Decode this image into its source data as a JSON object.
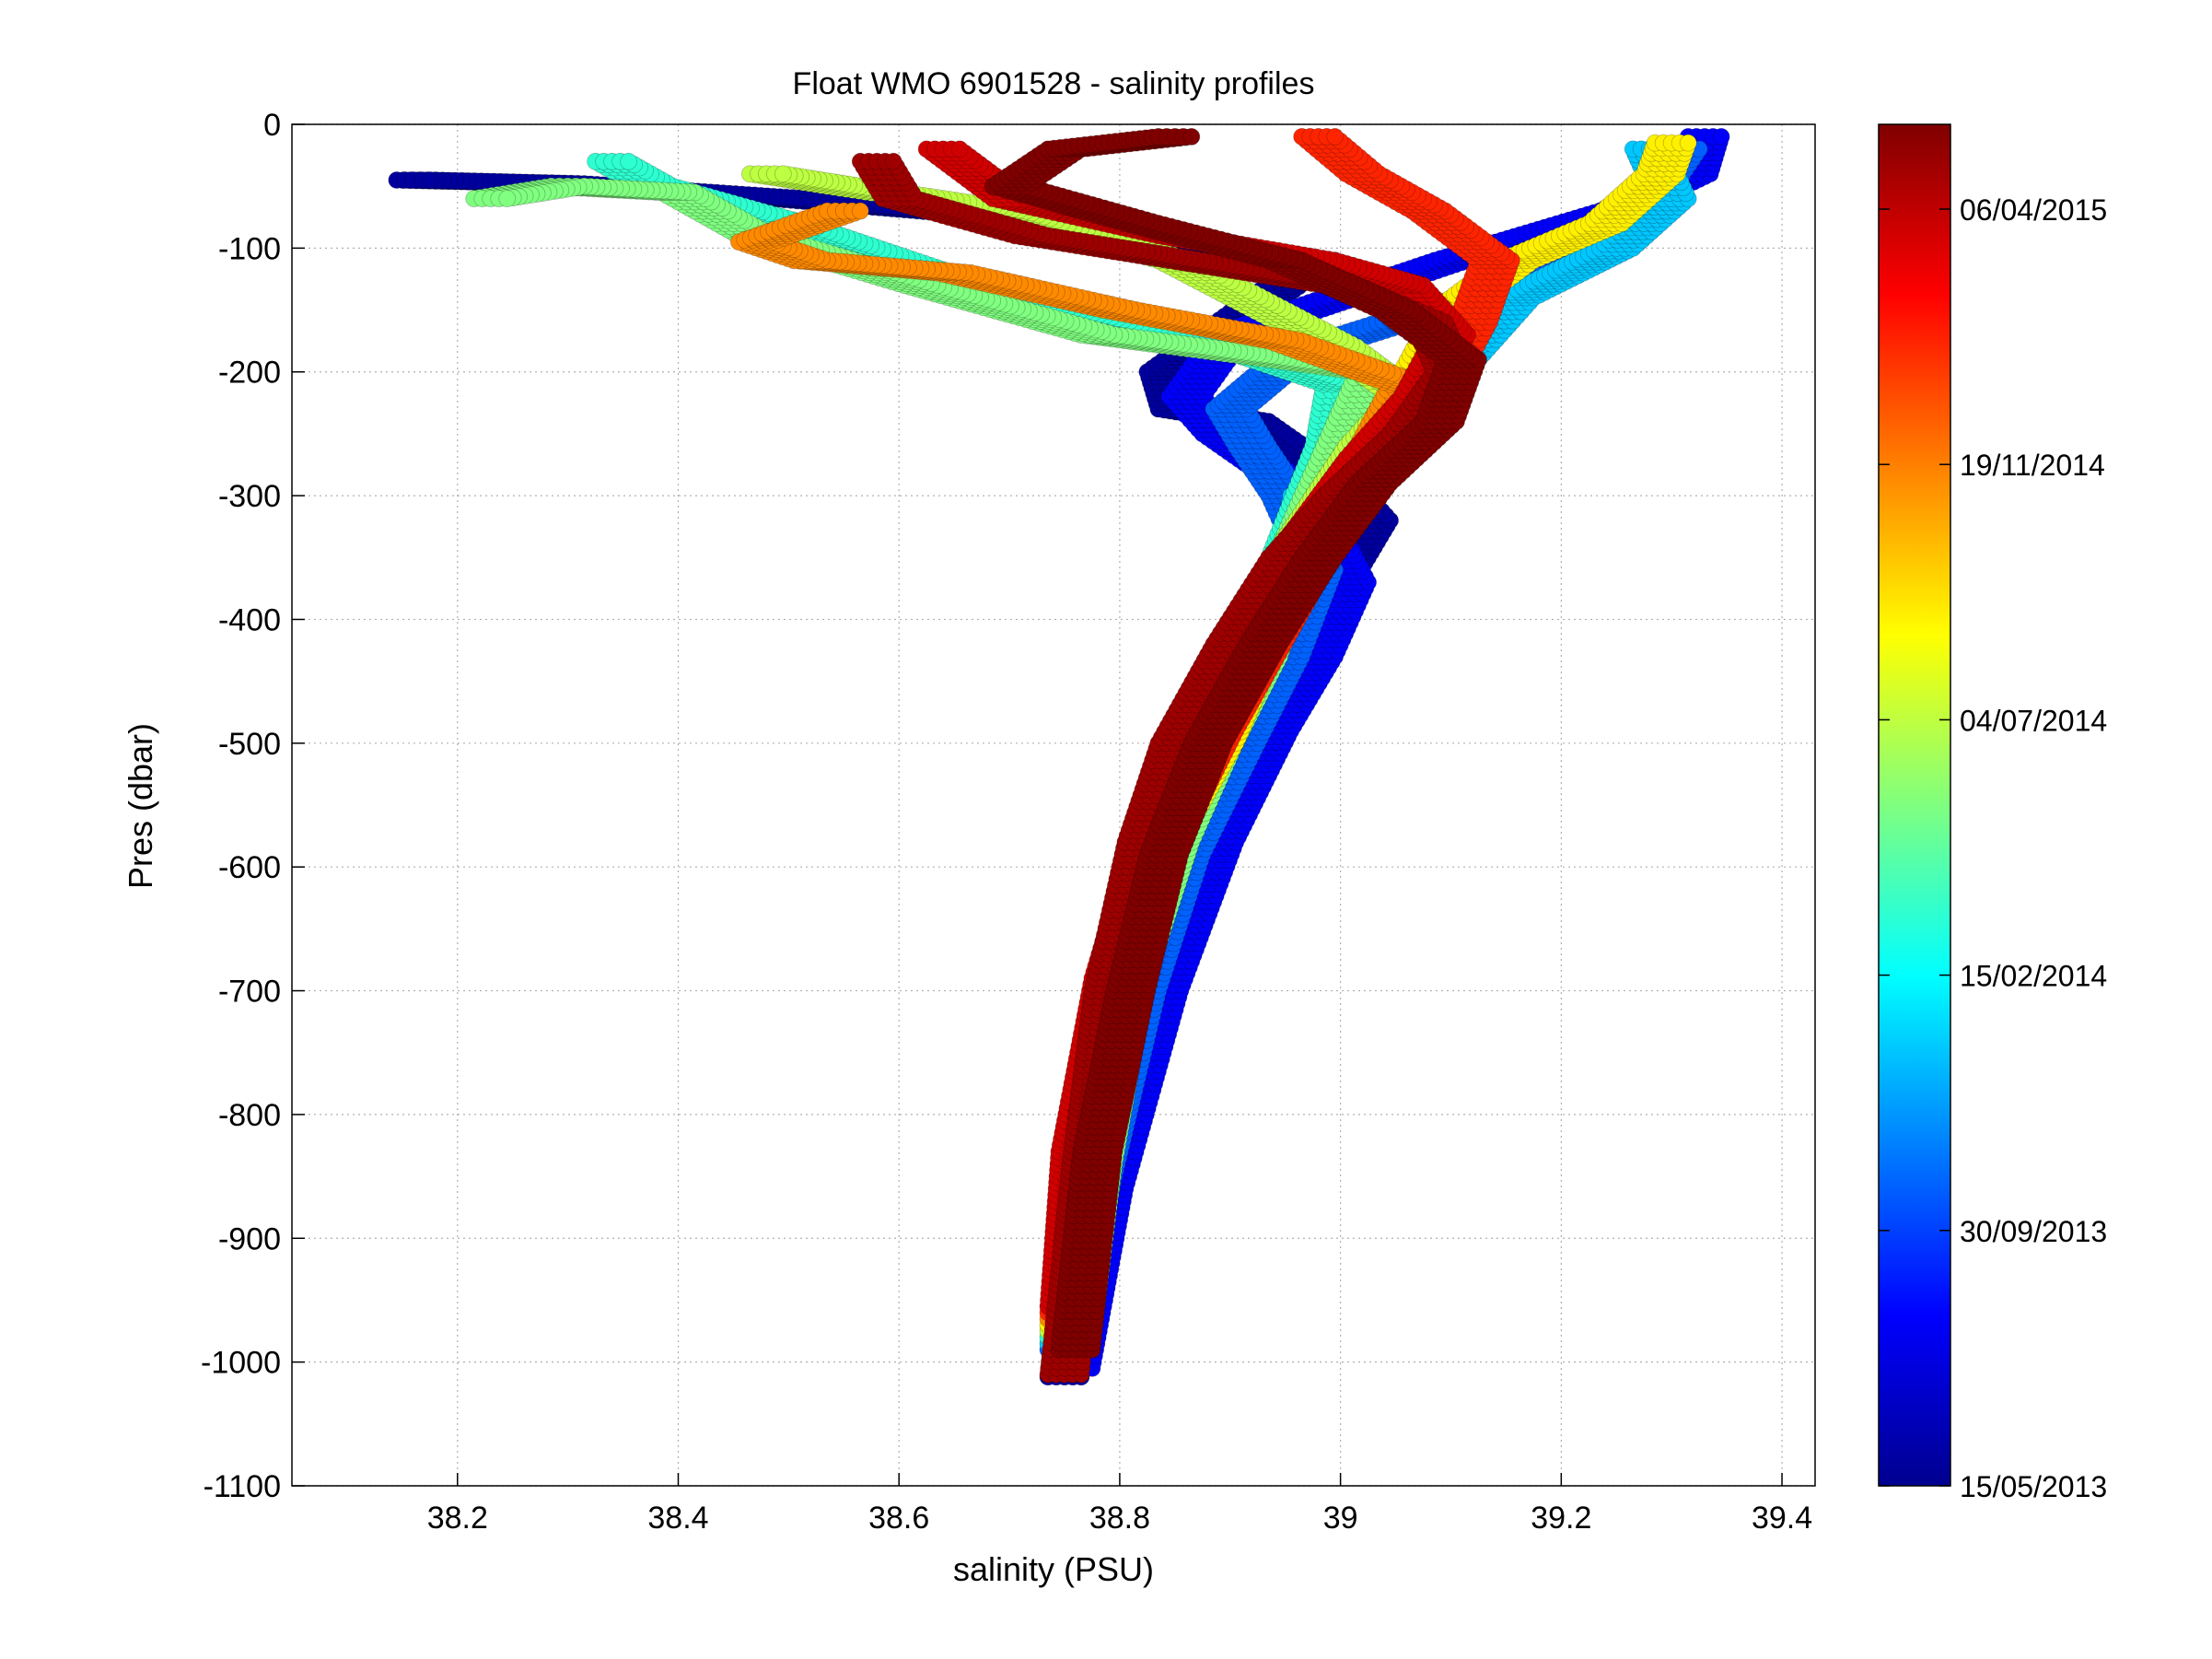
{
  "chart_data": {
    "type": "scatter",
    "title": "Float WMO 6901528 - salinity profiles",
    "xlabel": "salinity (PSU)",
    "ylabel": "Pres (dbar)",
    "xlim": [
      38.05,
      39.43
    ],
    "ylim": [
      -1100,
      0
    ],
    "xticks": [
      38.2,
      38.4,
      38.6,
      38.8,
      39,
      39.2,
      39.4
    ],
    "xtick_labels": [
      "38.2",
      "38.4",
      "38.6",
      "38.8",
      "39",
      "39.2",
      "39.4"
    ],
    "yticks": [
      0,
      -100,
      -200,
      -300,
      -400,
      -500,
      -600,
      -700,
      -800,
      -900,
      -1000,
      -1100
    ],
    "ytick_labels": [
      "0",
      "-100",
      "-200",
      "-300",
      "-400",
      "-500",
      "-600",
      "-700",
      "-800",
      "-900",
      "-1000",
      "-1100"
    ],
    "grid": true,
    "colormap": "jet",
    "colorbar": {
      "placement": "right",
      "labels": [
        "15/05/2013",
        "30/09/2013",
        "15/02/2014",
        "04/07/2014",
        "19/11/2014",
        "06/04/2015"
      ]
    },
    "series": [
      {
        "color_fraction": 0.03,
        "points": [
          [
            38.75,
            -1012
          ],
          [
            38.77,
            -850
          ],
          [
            38.82,
            -680
          ],
          [
            38.87,
            -560
          ],
          [
            38.92,
            -470
          ],
          [
            38.96,
            -420
          ],
          [
            38.99,
            -380
          ],
          [
            39.03,
            -320
          ],
          [
            39.0,
            -290
          ],
          [
            38.92,
            -240
          ],
          [
            38.85,
            -230
          ],
          [
            38.84,
            -200
          ],
          [
            38.98,
            -110
          ],
          [
            38.7,
            -75
          ],
          [
            38.5,
            -60
          ],
          [
            38.3,
            -48
          ],
          [
            38.16,
            -45
          ]
        ]
      },
      {
        "color_fraction": 0.12,
        "points": [
          [
            38.76,
            -1005
          ],
          [
            38.79,
            -860
          ],
          [
            38.84,
            -700
          ],
          [
            38.89,
            -580
          ],
          [
            38.94,
            -490
          ],
          [
            38.98,
            -430
          ],
          [
            39.01,
            -370
          ],
          [
            38.97,
            -300
          ],
          [
            38.89,
            -250
          ],
          [
            38.86,
            -220
          ],
          [
            38.9,
            -170
          ],
          [
            39.1,
            -110
          ],
          [
            39.25,
            -70
          ],
          [
            39.32,
            -40
          ],
          [
            39.33,
            -10
          ]
        ]
      },
      {
        "color_fraction": 0.22,
        "points": [
          [
            38.75,
            -990
          ],
          [
            38.78,
            -850
          ],
          [
            38.82,
            -700
          ],
          [
            38.86,
            -590
          ],
          [
            38.91,
            -500
          ],
          [
            38.95,
            -430
          ],
          [
            38.98,
            -360
          ],
          [
            38.95,
            -300
          ],
          [
            38.92,
            -260
          ],
          [
            38.9,
            -230
          ],
          [
            38.96,
            -185
          ],
          [
            39.12,
            -140
          ],
          [
            39.2,
            -110
          ],
          [
            39.28,
            -60
          ],
          [
            39.31,
            -20
          ]
        ]
      },
      {
        "color_fraction": 0.32,
        "points": [
          [
            38.75,
            -985
          ],
          [
            38.77,
            -840
          ],
          [
            38.81,
            -690
          ],
          [
            38.85,
            -580
          ],
          [
            38.89,
            -500
          ],
          [
            38.93,
            -430
          ],
          [
            38.96,
            -360
          ],
          [
            38.97,
            -300
          ],
          [
            39.05,
            -250
          ],
          [
            39.1,
            -200
          ],
          [
            39.16,
            -140
          ],
          [
            39.25,
            -100
          ],
          [
            39.3,
            -60
          ],
          [
            39.28,
            -20
          ]
        ]
      },
      {
        "color_fraction": 0.42,
        "points": [
          [
            38.75,
            -980
          ],
          [
            38.77,
            -830
          ],
          [
            38.8,
            -680
          ],
          [
            38.84,
            -570
          ],
          [
            38.88,
            -490
          ],
          [
            38.92,
            -420
          ],
          [
            38.95,
            -350
          ],
          [
            38.99,
            -260
          ],
          [
            39.0,
            -210
          ],
          [
            38.9,
            -180
          ],
          [
            38.7,
            -140
          ],
          [
            38.5,
            -80
          ],
          [
            38.38,
            -50
          ],
          [
            38.34,
            -30
          ]
        ]
      },
      {
        "color_fraction": 0.5,
        "points": [
          [
            38.76,
            -985
          ],
          [
            38.78,
            -840
          ],
          [
            38.81,
            -690
          ],
          [
            38.85,
            -580
          ],
          [
            38.89,
            -500
          ],
          [
            38.93,
            -430
          ],
          [
            38.96,
            -340
          ],
          [
            39.0,
            -260
          ],
          [
            39.03,
            -200
          ],
          [
            38.95,
            -190
          ],
          [
            38.78,
            -170
          ],
          [
            38.62,
            -130
          ],
          [
            38.47,
            -90
          ],
          [
            38.4,
            -55
          ],
          [
            38.3,
            -50
          ],
          [
            38.23,
            -60
          ]
        ]
      },
      {
        "color_fraction": 0.56,
        "points": [
          [
            38.75,
            -975
          ],
          [
            38.77,
            -830
          ],
          [
            38.8,
            -680
          ],
          [
            38.84,
            -570
          ],
          [
            38.88,
            -490
          ],
          [
            38.92,
            -420
          ],
          [
            38.96,
            -340
          ],
          [
            39.02,
            -260
          ],
          [
            39.06,
            -220
          ],
          [
            39.0,
            -180
          ],
          [
            38.85,
            -110
          ],
          [
            38.7,
            -70
          ],
          [
            38.55,
            -50
          ],
          [
            38.48,
            -40
          ]
        ]
      },
      {
        "color_fraction": 0.64,
        "points": [
          [
            38.75,
            -970
          ],
          [
            38.77,
            -830
          ],
          [
            38.8,
            -690
          ],
          [
            38.84,
            -580
          ],
          [
            38.89,
            -500
          ],
          [
            38.93,
            -420
          ],
          [
            38.98,
            -330
          ],
          [
            39.03,
            -260
          ],
          [
            39.07,
            -200
          ],
          [
            39.1,
            -150
          ],
          [
            39.16,
            -110
          ],
          [
            39.24,
            -80
          ],
          [
            39.29,
            -40
          ],
          [
            39.3,
            -15
          ]
        ]
      },
      {
        "color_fraction": 0.74,
        "points": [
          [
            38.75,
            -965
          ],
          [
            38.77,
            -830
          ],
          [
            38.8,
            -690
          ],
          [
            38.84,
            -580
          ],
          [
            38.88,
            -500
          ],
          [
            38.93,
            -420
          ],
          [
            38.98,
            -330
          ],
          [
            39.03,
            -260
          ],
          [
            39.06,
            -210
          ],
          [
            38.95,
            -175
          ],
          [
            38.8,
            -150
          ],
          [
            38.65,
            -120
          ],
          [
            38.52,
            -110
          ],
          [
            38.47,
            -95
          ],
          [
            38.55,
            -70
          ]
        ]
      },
      {
        "color_fraction": 0.84,
        "points": [
          [
            38.75,
            -960
          ],
          [
            38.77,
            -830
          ],
          [
            38.8,
            -690
          ],
          [
            38.84,
            -580
          ],
          [
            38.89,
            -490
          ],
          [
            38.94,
            -410
          ],
          [
            38.99,
            -330
          ],
          [
            39.04,
            -260
          ],
          [
            39.09,
            -210
          ],
          [
            39.12,
            -160
          ],
          [
            39.14,
            -110
          ],
          [
            39.08,
            -70
          ],
          [
            39.02,
            -40
          ],
          [
            38.98,
            -10
          ]
        ]
      },
      {
        "color_fraction": 0.92,
        "points": [
          [
            38.75,
            -955
          ],
          [
            38.76,
            -830
          ],
          [
            38.79,
            -690
          ],
          [
            38.83,
            -570
          ],
          [
            38.87,
            -480
          ],
          [
            38.92,
            -400
          ],
          [
            38.97,
            -330
          ],
          [
            39.02,
            -270
          ],
          [
            39.07,
            -220
          ],
          [
            39.1,
            -170
          ],
          [
            39.06,
            -130
          ],
          [
            38.98,
            -110
          ],
          [
            38.85,
            -90
          ],
          [
            38.7,
            -60
          ],
          [
            38.64,
            -20
          ]
        ]
      },
      {
        "color_fraction": 0.97,
        "points": [
          [
            38.75,
            -1010
          ],
          [
            38.77,
            -840
          ],
          [
            38.79,
            -700
          ],
          [
            38.82,
            -580
          ],
          [
            38.85,
            -500
          ],
          [
            38.9,
            -420
          ],
          [
            38.95,
            -350
          ],
          [
            39.0,
            -300
          ],
          [
            39.06,
            -250
          ],
          [
            39.1,
            -200
          ],
          [
            39.08,
            -160
          ],
          [
            39.0,
            -130
          ],
          [
            38.86,
            -110
          ],
          [
            38.72,
            -90
          ],
          [
            38.6,
            -60
          ],
          [
            38.58,
            -30
          ]
        ]
      },
      {
        "color_fraction": 1.0,
        "points": [
          [
            38.76,
            -990
          ],
          [
            38.78,
            -830
          ],
          [
            38.81,
            -700
          ],
          [
            38.84,
            -590
          ],
          [
            38.88,
            -500
          ],
          [
            38.93,
            -420
          ],
          [
            38.98,
            -350
          ],
          [
            39.03,
            -290
          ],
          [
            39.09,
            -240
          ],
          [
            39.11,
            -190
          ],
          [
            39.05,
            -150
          ],
          [
            38.95,
            -110
          ],
          [
            38.82,
            -80
          ],
          [
            38.7,
            -50
          ],
          [
            38.75,
            -20
          ],
          [
            38.85,
            -10
          ]
        ]
      }
    ]
  }
}
